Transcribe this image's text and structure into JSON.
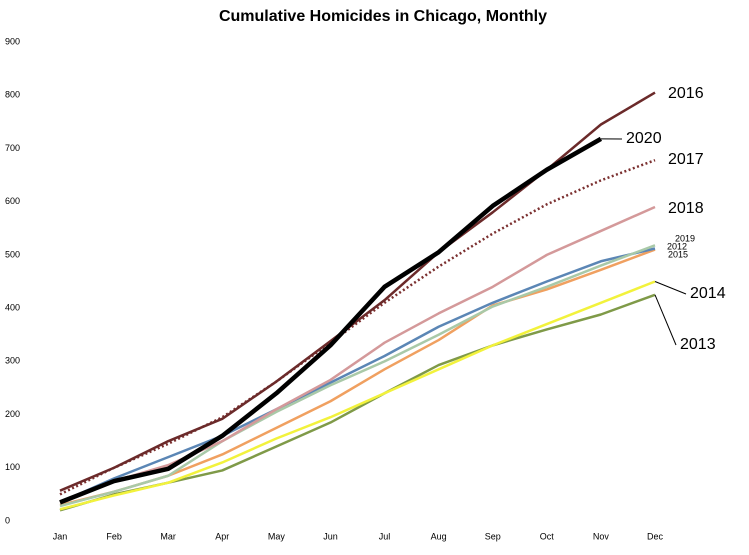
{
  "chart_data": {
    "type": "line",
    "title": "Cumulative Homicides in Chicago, Monthly",
    "categories": [
      "Jan",
      "Feb",
      "Mar",
      "Apr",
      "May",
      "Jun",
      "Jul",
      "Aug",
      "Sep",
      "Oct",
      "Nov",
      "Dec"
    ],
    "ylim": [
      0,
      900
    ],
    "yticks": [
      0,
      100,
      200,
      300,
      400,
      500,
      600,
      700,
      800,
      900
    ],
    "grid": false,
    "series": [
      {
        "name": "2013",
        "color": "#7f9a48",
        "values": [
          20,
          50,
          72,
          95,
          140,
          185,
          240,
          293,
          330,
          360,
          388,
          425
        ]
      },
      {
        "name": "2014",
        "color": "#f2f23c",
        "values": [
          22,
          48,
          72,
          110,
          155,
          195,
          240,
          285,
          330,
          370,
          410,
          450
        ]
      },
      {
        "name": "2015",
        "color": "#f0a060",
        "values": [
          30,
          55,
          85,
          125,
          175,
          225,
          285,
          340,
          405,
          435,
          472,
          510
        ]
      },
      {
        "name": "2012",
        "color": "#5b86b5",
        "values": [
          35,
          80,
          120,
          160,
          210,
          260,
          310,
          365,
          410,
          450,
          488,
          512
        ]
      },
      {
        "name": "2019",
        "color": "#a9c9a8",
        "values": [
          28,
          55,
          85,
          150,
          205,
          255,
          300,
          350,
          403,
          440,
          480,
          518
        ]
      },
      {
        "name": "2018",
        "color": "#d4999a",
        "values": [
          35,
          75,
          105,
          150,
          210,
          265,
          335,
          390,
          440,
          500,
          545,
          590
        ]
      },
      {
        "name": "2017",
        "color": "#7b3030",
        "dotted": true,
        "values": [
          50,
          100,
          145,
          195,
          262,
          335,
          410,
          478,
          540,
          595,
          640,
          678
        ]
      },
      {
        "name": "2016",
        "color": "#6b2a2a",
        "values": [
          57,
          100,
          150,
          192,
          262,
          338,
          415,
          505,
          580,
          660,
          745,
          805
        ]
      },
      {
        "name": "2020",
        "color": "#000000",
        "bold": true,
        "values": [
          35,
          75,
          98,
          160,
          240,
          330,
          440,
          505,
          592,
          660,
          718,
          null
        ]
      }
    ]
  }
}
